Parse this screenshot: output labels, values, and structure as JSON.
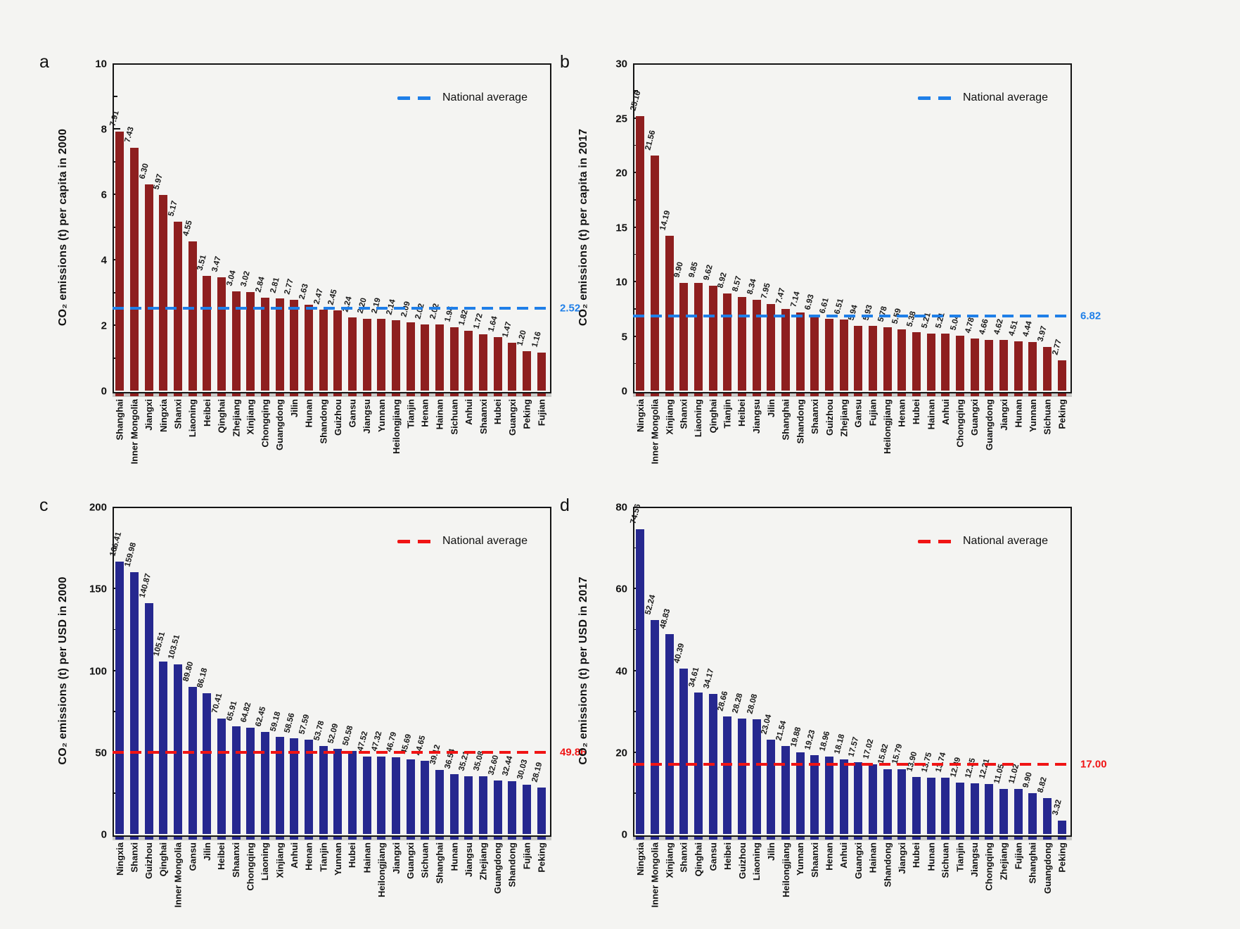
{
  "figure": {
    "background": "#f4f4f2",
    "legend_label": "National average"
  },
  "chart_data": [
    {
      "panel": "a",
      "type": "bar",
      "ylabel": "CO₂ emissions (t) per capita in 2000",
      "bar_color": "#8e1f1f",
      "average": 2.52,
      "average_label": "2.52",
      "average_color": "#1f7fe8",
      "legend": "National average",
      "legend_position": "top-right",
      "grid": false,
      "ylim": [
        0,
        10
      ],
      "yticks": [
        0,
        2,
        4,
        6,
        8,
        10
      ],
      "categories": [
        "Shanghai",
        "Inner Mongolia",
        "Jiangxi",
        "Ningxia",
        "Shanxi",
        "Liaoning",
        "Heibei",
        "Qinghai",
        "Zhejiang",
        "Xinjiang",
        "Chongqing",
        "Guangdong",
        "Jilin",
        "Hunan",
        "Shandong",
        "Guizhou",
        "Gansu",
        "Jiangsu",
        "Yunnan",
        "Heilongjiang",
        "Tianjin",
        "Henan",
        "Hainan",
        "Sichuan",
        "Anhui",
        "Shaanxi",
        "Hubei",
        "Guangxi",
        "Peking",
        "Fujian"
      ],
      "values": [
        7.91,
        7.43,
        6.3,
        5.97,
        5.17,
        4.55,
        3.51,
        3.47,
        3.04,
        3.02,
        2.84,
        2.81,
        2.77,
        2.63,
        2.47,
        2.45,
        2.24,
        2.2,
        2.19,
        2.14,
        2.09,
        2.02,
        2.02,
        1.94,
        1.82,
        1.72,
        1.64,
        1.47,
        1.2,
        1.16
      ]
    },
    {
      "panel": "b",
      "type": "bar",
      "ylabel": "CO₂ emissions (t) per capita in 2017",
      "bar_color": "#8e1f1f",
      "average": 6.82,
      "average_label": "6.82",
      "average_color": "#1f7fe8",
      "legend": "National average",
      "legend_position": "top-right",
      "grid": false,
      "ylim": [
        0,
        30
      ],
      "yticks": [
        0,
        5,
        10,
        15,
        20,
        25,
        30
      ],
      "categories": [
        "Ningxia",
        "Inner Mongolia",
        "Xinjiang",
        "Shanxi",
        "Liaoning",
        "Qinghai",
        "Tianjin",
        "Heibei",
        "Jiangsu",
        "Jilin",
        "Shanghai",
        "Shandong",
        "Shaanxi",
        "Guizhou",
        "Zhejiang",
        "Gansu",
        "Fujian",
        "Heilongjiang",
        "Henan",
        "Hubei",
        "Hainan",
        "Anhui",
        "Chongqing",
        "Guangxi",
        "Guangdong",
        "Jiangxi",
        "Hunan",
        "Yunnan",
        "Sichuan",
        "Peking"
      ],
      "values": [
        25.16,
        21.56,
        14.19,
        9.9,
        9.85,
        9.62,
        8.92,
        8.57,
        8.34,
        7.95,
        7.47,
        7.14,
        6.93,
        6.61,
        6.51,
        5.94,
        5.93,
        5.78,
        5.59,
        5.38,
        5.21,
        5.21,
        5.04,
        4.78,
        4.66,
        4.62,
        4.51,
        4.44,
        3.97,
        2.77
      ]
    },
    {
      "panel": "c",
      "type": "bar",
      "ylabel": "CO₂ emissions (t) per USD in 2000",
      "bar_color": "#26288f",
      "average": 49.86,
      "average_label": "49.86",
      "average_color": "#f01414",
      "legend": "National average",
      "legend_position": "top-right",
      "grid": false,
      "ylim": [
        0,
        200
      ],
      "yticks": [
        0,
        50,
        100,
        150,
        200
      ],
      "categories": [
        "Ningxia",
        "Shanxi",
        "Guizhou",
        "Qinghai",
        "Inner Mongolia",
        "Gansu",
        "Jilin",
        "Heibei",
        "Shaanxi",
        "Chongqing",
        "Liaoning",
        "Xinjiang",
        "Anhui",
        "Henan",
        "Tianjin",
        "Yunnan",
        "Hubei",
        "Hainan",
        "Heilongjiang",
        "Jiangxi",
        "Guangxi",
        "Sichuan",
        "Shanghai",
        "Hunan",
        "Jiangsu",
        "Zhejiang",
        "Guangdong",
        "Shandong",
        "Fujian",
        "Peking"
      ],
      "values": [
        166.41,
        159.98,
        140.87,
        105.51,
        103.51,
        89.8,
        86.18,
        70.41,
        65.91,
        64.82,
        62.45,
        59.18,
        58.56,
        57.59,
        53.78,
        52.09,
        50.58,
        47.52,
        47.32,
        46.79,
        45.69,
        44.65,
        39.12,
        36.54,
        35.21,
        35.08,
        32.6,
        32.44,
        30.03,
        28.19
      ]
    },
    {
      "panel": "d",
      "type": "bar",
      "ylabel": "CO₂ emissions (t) per USD in 2017",
      "bar_color": "#26288f",
      "average": 17.0,
      "average_label": "17.00",
      "average_color": "#f01414",
      "legend": "National average",
      "legend_position": "top-right",
      "grid": false,
      "ylim": [
        0,
        80
      ],
      "yticks": [
        0,
        20,
        40,
        60,
        80
      ],
      "categories": [
        "Ningxia",
        "Inner Mongolia",
        "Xinjiang",
        "Shanxi",
        "Qinghai",
        "Gansu",
        "Heibei",
        "Guizhou",
        "Liaoning",
        "Jilin",
        "Heilongjiang",
        "Yunnan",
        "Shaanxi",
        "Henan",
        "Anhui",
        "Guangxi",
        "Hainan",
        "Shandong",
        "Jiangxi",
        "Hubei",
        "Hunan",
        "Sichuan",
        "Tianjin",
        "Jiangsu",
        "Chongqing",
        "Zhejiang",
        "Fujian",
        "Shanghai",
        "Guangdong",
        "Peking"
      ],
      "values": [
        74.56,
        52.24,
        48.83,
        40.39,
        34.61,
        34.17,
        28.66,
        28.28,
        28.08,
        23.04,
        21.54,
        19.88,
        19.23,
        18.96,
        18.18,
        17.57,
        17.02,
        15.82,
        15.79,
        13.9,
        13.75,
        13.74,
        12.49,
        12.35,
        12.21,
        11.05,
        11.02,
        9.9,
        8.82,
        3.32
      ]
    }
  ]
}
